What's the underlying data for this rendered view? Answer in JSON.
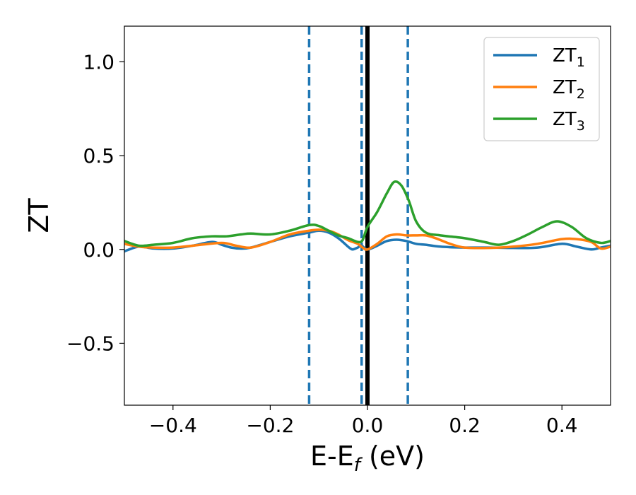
{
  "chart_data": {
    "type": "line",
    "xlabel_main": "E-E",
    "xlabel_sub": "f",
    "xlabel_tail": " (eV)",
    "ylabel": "ZT",
    "xlim": [
      -0.5,
      0.5
    ],
    "ylim": [
      -0.83,
      1.19
    ],
    "xticks": [
      -0.4,
      -0.2,
      0.0,
      0.2,
      0.4
    ],
    "xtick_labels": [
      "−0.4",
      "−0.2",
      "0.0",
      "0.2",
      "0.4"
    ],
    "yticks": [
      -0.5,
      0.0,
      0.5,
      1.0
    ],
    "ytick_labels": [
      "−0.5",
      "0.0",
      "0.5",
      "1.0"
    ],
    "grid": false,
    "legend_position": "top-right",
    "vertical_lines": [
      {
        "x": 0.0,
        "style": "solid",
        "color": "#000000"
      },
      {
        "x": -0.12,
        "style": "dashed",
        "color": "#1f77b4"
      },
      {
        "x": -0.012,
        "style": "dashed",
        "color": "#1f77b4"
      },
      {
        "x": 0.083,
        "style": "dashed",
        "color": "#1f77b4"
      }
    ],
    "series": [
      {
        "name": "ZT",
        "sub": "1",
        "color": "#1f77b4",
        "x": [
          -0.5,
          -0.47,
          -0.44,
          -0.4,
          -0.36,
          -0.32,
          -0.3,
          -0.28,
          -0.26,
          -0.24,
          -0.2,
          -0.16,
          -0.12,
          -0.1,
          -0.08,
          -0.06,
          -0.04,
          -0.035,
          -0.03,
          -0.02,
          -0.012,
          0.0,
          0.02,
          0.04,
          0.06,
          0.08,
          0.1,
          0.12,
          0.15,
          0.2,
          0.25,
          0.3,
          0.35,
          0.4,
          0.43,
          0.46,
          0.48,
          0.5
        ],
        "y": [
          -0.01,
          0.015,
          0.005,
          0.005,
          0.02,
          0.04,
          0.025,
          0.01,
          0.005,
          0.01,
          0.04,
          0.07,
          0.09,
          0.1,
          0.09,
          0.06,
          0.015,
          0.005,
          0.0,
          0.01,
          0.02,
          0.0,
          0.02,
          0.045,
          0.052,
          0.045,
          0.03,
          0.025,
          0.015,
          0.01,
          0.01,
          0.008,
          0.01,
          0.03,
          0.015,
          0.0,
          0.01,
          0.02
        ]
      },
      {
        "name": "ZT",
        "sub": "2",
        "color": "#ff7f0e",
        "x": [
          -0.5,
          -0.47,
          -0.44,
          -0.4,
          -0.36,
          -0.3,
          -0.27,
          -0.24,
          -0.2,
          -0.16,
          -0.12,
          -0.1,
          -0.08,
          -0.06,
          -0.04,
          -0.02,
          -0.01,
          0.0,
          0.02,
          0.04,
          0.06,
          0.08,
          0.1,
          0.12,
          0.14,
          0.17,
          0.2,
          0.25,
          0.3,
          0.35,
          0.4,
          0.43,
          0.46,
          0.48,
          0.5
        ],
        "y": [
          0.03,
          0.015,
          0.01,
          0.01,
          0.02,
          0.035,
          0.02,
          0.01,
          0.04,
          0.08,
          0.1,
          0.105,
          0.1,
          0.08,
          0.05,
          0.03,
          0.01,
          0.0,
          0.03,
          0.07,
          0.08,
          0.075,
          0.075,
          0.075,
          0.06,
          0.03,
          0.01,
          0.008,
          0.015,
          0.03,
          0.055,
          0.055,
          0.04,
          0.005,
          0.015
        ]
      },
      {
        "name": "ZT",
        "sub": "3",
        "color": "#2ca02c",
        "x": [
          -0.5,
          -0.47,
          -0.44,
          -0.4,
          -0.36,
          -0.32,
          -0.29,
          -0.26,
          -0.24,
          -0.2,
          -0.16,
          -0.12,
          -0.1,
          -0.08,
          -0.06,
          -0.04,
          -0.02,
          -0.01,
          0.0,
          0.02,
          0.04,
          0.055,
          0.07,
          0.085,
          0.1,
          0.12,
          0.15,
          0.2,
          0.24,
          0.27,
          0.3,
          0.33,
          0.36,
          0.39,
          0.42,
          0.45,
          0.48,
          0.5
        ],
        "y": [
          0.045,
          0.02,
          0.025,
          0.035,
          0.06,
          0.07,
          0.07,
          0.08,
          0.085,
          0.08,
          0.1,
          0.13,
          0.125,
          0.1,
          0.075,
          0.06,
          0.04,
          0.05,
          0.12,
          0.2,
          0.3,
          0.36,
          0.34,
          0.26,
          0.15,
          0.09,
          0.075,
          0.06,
          0.04,
          0.025,
          0.045,
          0.08,
          0.12,
          0.15,
          0.12,
          0.06,
          0.035,
          0.045
        ]
      }
    ]
  }
}
